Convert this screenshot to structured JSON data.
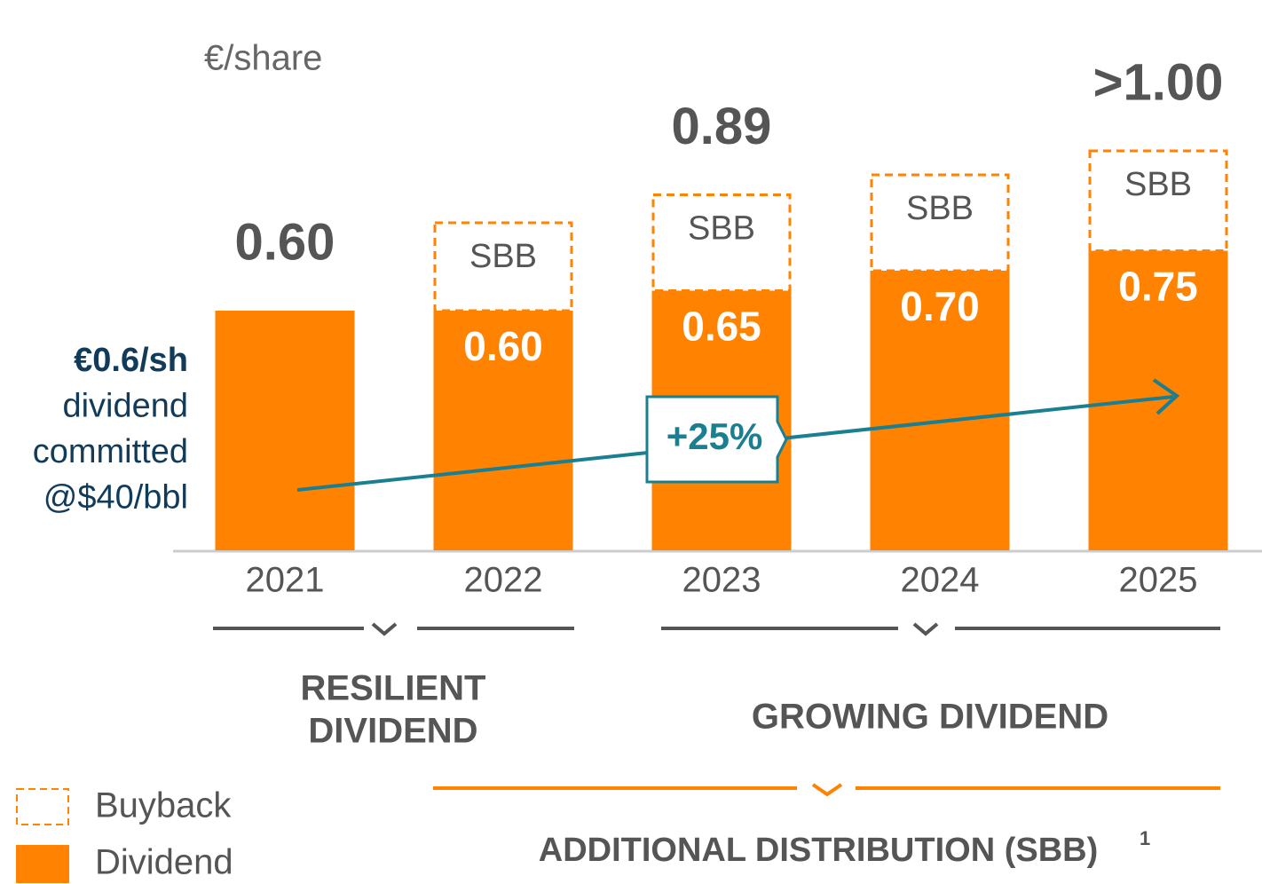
{
  "chart_data": {
    "type": "stacked_bar",
    "unit_label": "€/share",
    "categories": [
      "2021",
      "2022",
      "2023",
      "2024",
      "2025"
    ],
    "series": [
      {
        "name": "Dividend",
        "color": "#ff8200",
        "values": [
          0.6,
          0.6,
          0.65,
          0.7,
          0.75
        ],
        "value_labels": [
          null,
          "0.60",
          "0.65",
          "0.70",
          "0.75"
        ]
      },
      {
        "name": "Buyback",
        "color": "#ff8200",
        "style": "dashed",
        "label": "SBB",
        "values": [
          null,
          0.22,
          0.24,
          0.24,
          0.25
        ]
      }
    ],
    "totals": [
      0.6,
      null,
      0.89,
      null,
      1.0
    ],
    "total_labels": [
      "0.60",
      null,
      "0.89",
      null,
      ">1.00"
    ],
    "ylim": [
      0,
      1.38
    ],
    "note_lines": [
      "€0.6/sh",
      "dividend",
      "committed",
      "@$40/bbl"
    ],
    "arrow_label": "+25%",
    "groups": [
      {
        "lines": [
          "RESILIENT",
          "DIVIDEND"
        ]
      },
      {
        "lines": [
          "GROWING DIVIDEND"
        ]
      }
    ],
    "distribution": {
      "text": "ADDITIONAL DISTRIBUTION (SBB)",
      "footnote": "1"
    }
  }
}
